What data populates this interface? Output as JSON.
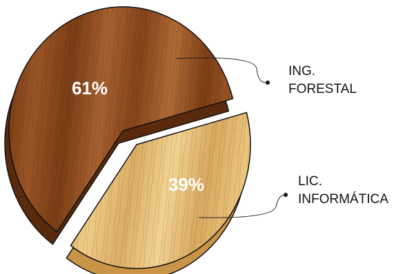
{
  "chart_data": {
    "type": "pie",
    "categories": [
      [
        "ING.",
        "FORESTAL"
      ],
      [
        "LIC.",
        "INFORMÁTICA"
      ]
    ],
    "values": [
      61,
      39
    ],
    "value_labels": [
      "61%",
      "39%"
    ],
    "colors": [
      "#8b4a1f",
      "#e3b86c"
    ]
  }
}
